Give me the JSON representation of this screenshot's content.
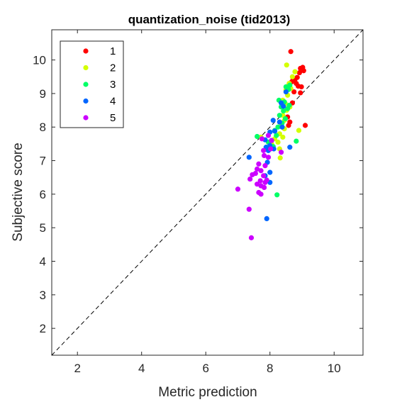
{
  "chart_data": {
    "type": "scatter",
    "title": "quantization_noise (tid2013)",
    "xlabel": "Metric prediction",
    "ylabel": "Subjective score",
    "xlim": [
      1.2,
      10.9
    ],
    "ylim": [
      1.2,
      10.9
    ],
    "xticks": [
      "2",
      "4",
      "6",
      "8",
      "10"
    ],
    "yticks": [
      "2",
      "3",
      "4",
      "5",
      "6",
      "7",
      "8",
      "9",
      "10"
    ],
    "grid": false,
    "legend_position": "top-left",
    "reference_line": "diagonal dashed y = x",
    "series": [
      {
        "name": "1",
        "color": "#ff0000",
        "points": [
          [
            8.65,
            10.25
          ],
          [
            8.72,
            9.45
          ],
          [
            8.78,
            9.42
          ],
          [
            8.85,
            9.48
          ],
          [
            8.95,
            9.75
          ],
          [
            9.02,
            9.78
          ],
          [
            9.05,
            9.68
          ],
          [
            8.92,
            9.62
          ],
          [
            8.82,
            9.3
          ],
          [
            8.88,
            9.22
          ],
          [
            8.98,
            9.2
          ],
          [
            8.6,
            9.28
          ],
          [
            8.68,
            9.35
          ],
          [
            8.75,
            9.05
          ],
          [
            8.95,
            9.02
          ],
          [
            8.7,
            8.72
          ],
          [
            8.55,
            8.3
          ],
          [
            8.62,
            8.15
          ],
          [
            8.58,
            8.05
          ],
          [
            9.1,
            8.05
          ]
        ]
      },
      {
        "name": "2",
        "color": "#d4ff00",
        "points": [
          [
            8.52,
            9.85
          ],
          [
            8.78,
            9.65
          ],
          [
            8.7,
            9.5
          ],
          [
            8.6,
            9.3
          ],
          [
            8.65,
            9.15
          ],
          [
            8.5,
            9.1
          ],
          [
            8.55,
            8.95
          ],
          [
            8.4,
            8.8
          ],
          [
            8.48,
            8.7
          ],
          [
            8.62,
            8.6
          ],
          [
            8.52,
            8.5
          ],
          [
            8.4,
            8.35
          ],
          [
            8.45,
            8.2
          ],
          [
            8.35,
            8.05
          ],
          [
            8.45,
            7.95
          ],
          [
            8.3,
            7.8
          ],
          [
            8.4,
            7.7
          ],
          [
            8.15,
            7.65
          ],
          [
            8.25,
            7.55
          ],
          [
            8.3,
            7.35
          ],
          [
            8.32,
            7.08
          ],
          [
            8.9,
            7.9
          ],
          [
            7.72,
            7.7
          ],
          [
            8.05,
            7.5
          ]
        ]
      },
      {
        "name": "3",
        "color": "#00ff66",
        "points": [
          [
            8.5,
            9.2
          ],
          [
            8.62,
            9.25
          ],
          [
            8.58,
            9.12
          ],
          [
            8.28,
            8.8
          ],
          [
            8.45,
            8.75
          ],
          [
            8.6,
            8.65
          ],
          [
            8.35,
            8.6
          ],
          [
            8.42,
            8.48
          ],
          [
            8.55,
            8.55
          ],
          [
            8.3,
            8.35
          ],
          [
            8.48,
            8.25
          ],
          [
            8.38,
            8.12
          ],
          [
            8.25,
            8.0
          ],
          [
            8.15,
            7.9
          ],
          [
            8.2,
            7.75
          ],
          [
            8.82,
            7.58
          ],
          [
            7.6,
            7.72
          ],
          [
            7.95,
            7.55
          ],
          [
            8.1,
            7.42
          ],
          [
            8.22,
            5.98
          ]
        ]
      },
      {
        "name": "4",
        "color": "#0066ff",
        "points": [
          [
            8.5,
            9.05
          ],
          [
            8.35,
            8.72
          ],
          [
            8.42,
            8.62
          ],
          [
            8.3,
            8.15
          ],
          [
            8.38,
            8.0
          ],
          [
            8.1,
            8.2
          ],
          [
            8.15,
            7.88
          ],
          [
            8.0,
            7.85
          ],
          [
            7.85,
            7.62
          ],
          [
            8.05,
            7.6
          ],
          [
            8.0,
            7.45
          ],
          [
            8.12,
            7.35
          ],
          [
            7.95,
            7.3
          ],
          [
            7.88,
            7.4
          ],
          [
            8.62,
            7.4
          ],
          [
            7.35,
            7.1
          ],
          [
            7.92,
            6.95
          ],
          [
            8.0,
            6.65
          ],
          [
            7.85,
            6.55
          ],
          [
            8.0,
            6.35
          ],
          [
            7.9,
            5.27
          ]
        ]
      },
      {
        "name": "5",
        "color": "#cc00ff",
        "points": [
          [
            7.75,
            7.65
          ],
          [
            7.95,
            7.75
          ],
          [
            8.05,
            7.6
          ],
          [
            8.35,
            7.25
          ],
          [
            7.8,
            7.3
          ],
          [
            8.02,
            7.35
          ],
          [
            7.82,
            7.15
          ],
          [
            7.95,
            7.1
          ],
          [
            7.65,
            6.9
          ],
          [
            7.85,
            6.85
          ],
          [
            7.72,
            6.7
          ],
          [
            7.6,
            6.75
          ],
          [
            7.55,
            6.62
          ],
          [
            7.45,
            6.58
          ],
          [
            7.8,
            6.55
          ],
          [
            7.9,
            6.42
          ],
          [
            7.7,
            6.4
          ],
          [
            7.6,
            6.3
          ],
          [
            7.72,
            6.25
          ],
          [
            7.82,
            6.2
          ],
          [
            7.65,
            6.05
          ],
          [
            7.72,
            6.0
          ],
          [
            7.85,
            6.35
          ],
          [
            7.38,
            6.45
          ],
          [
            7.0,
            6.15
          ],
          [
            7.35,
            5.55
          ],
          [
            7.42,
            4.7
          ]
        ]
      }
    ]
  }
}
